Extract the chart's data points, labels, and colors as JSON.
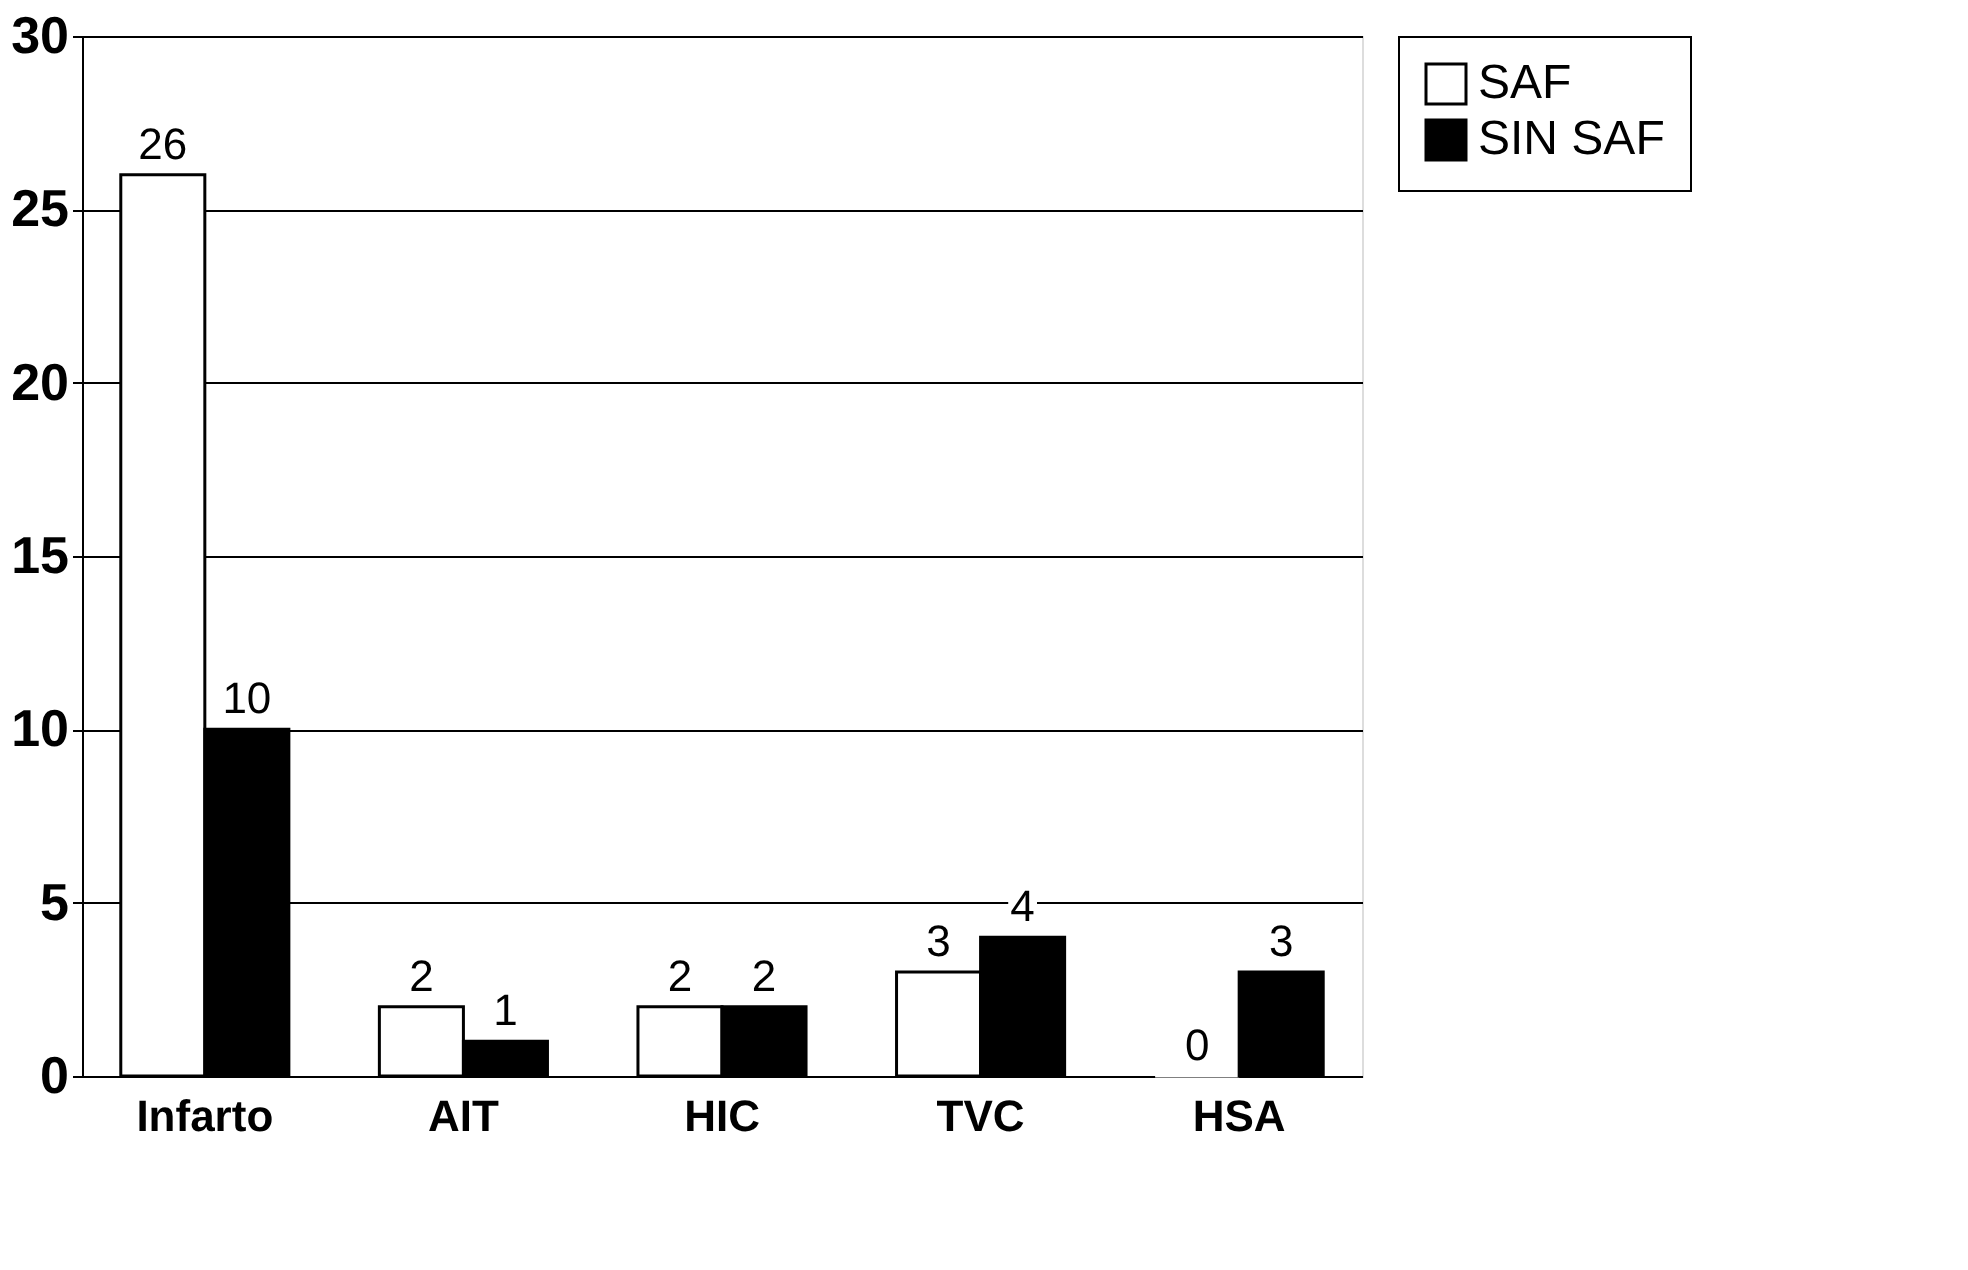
{
  "chart_data": {
    "type": "bar",
    "categories": [
      "Infarto",
      "AIT",
      "HIC",
      "TVC",
      "HSA"
    ],
    "series": [
      {
        "name": "SAF",
        "color": "#ffffff",
        "values": [
          26,
          2,
          2,
          3,
          0
        ]
      },
      {
        "name": "SIN SAF",
        "color": "#000000",
        "values": [
          10,
          1,
          2,
          4,
          3
        ]
      }
    ],
    "ylim": [
      0,
      30
    ],
    "yticks": [
      0,
      5,
      10,
      15,
      20,
      25,
      30
    ],
    "grid": "y",
    "legend": "right",
    "data_labels": true
  }
}
